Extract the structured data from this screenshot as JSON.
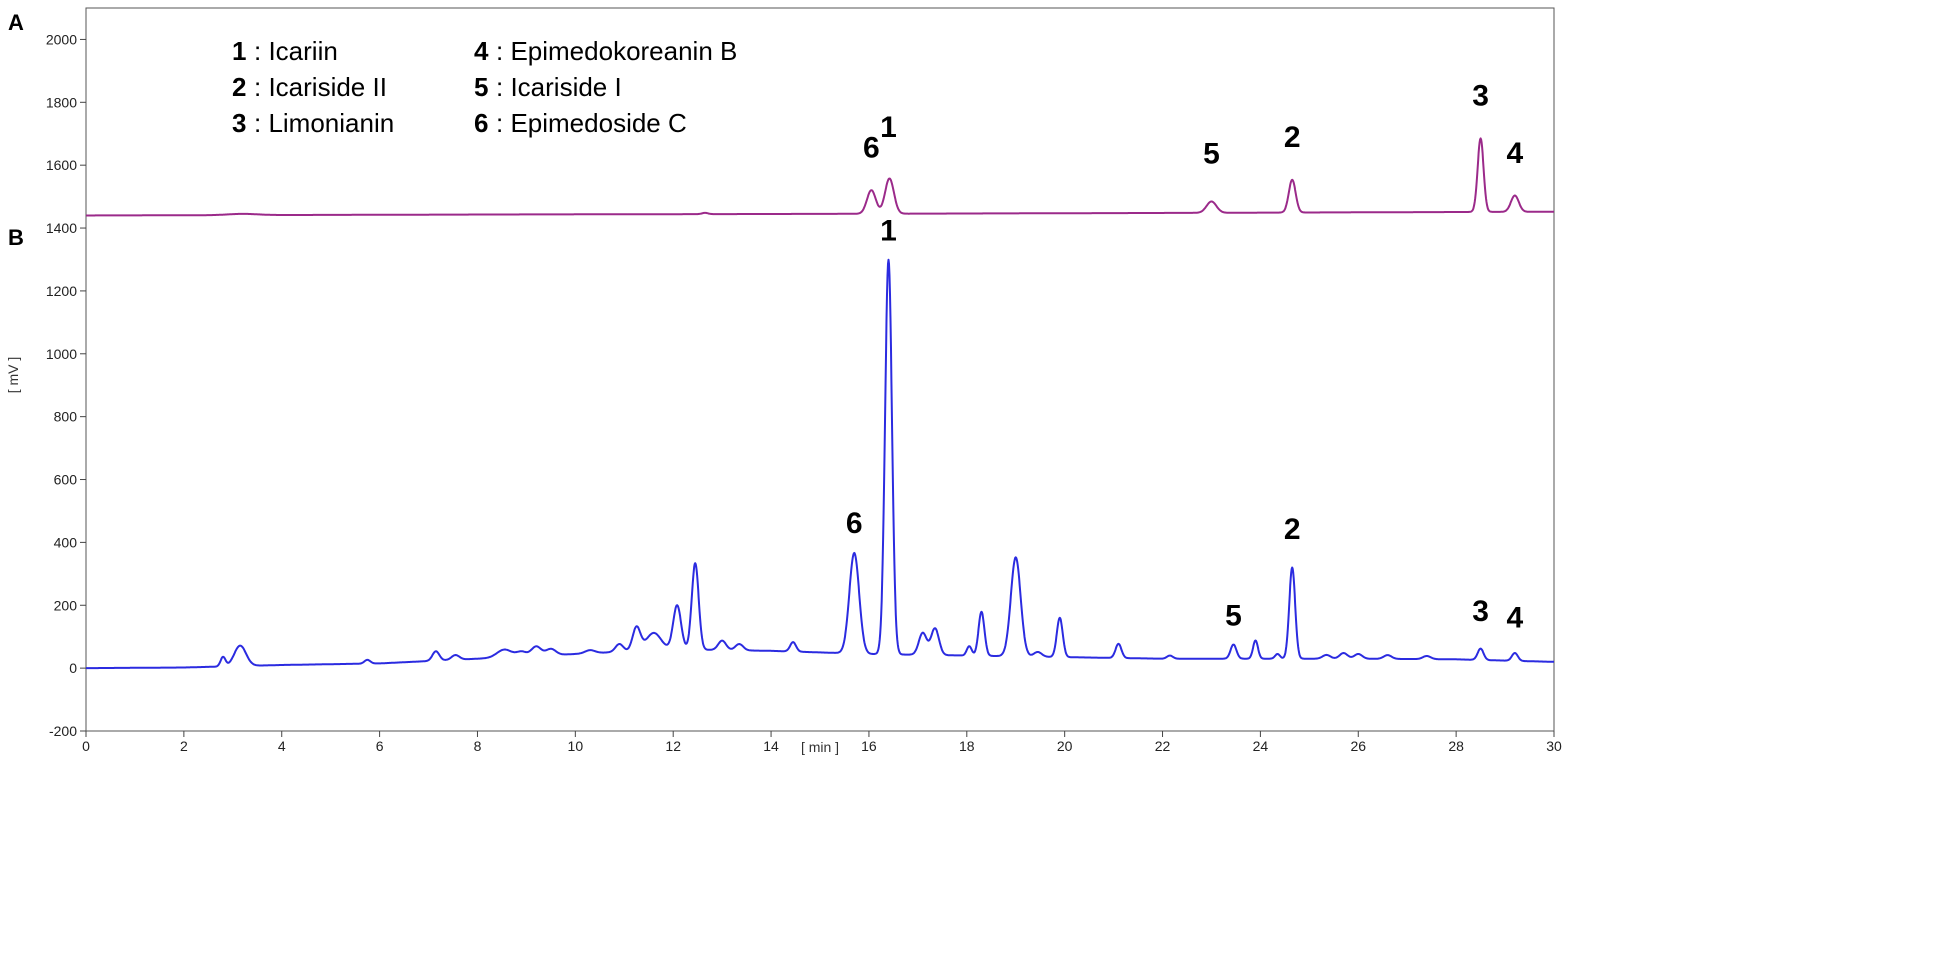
{
  "chart_data": {
    "type": "line",
    "panel_labels": [
      "A",
      "B"
    ],
    "xlabel": "[ min ]",
    "ylabel": "[ mV ]",
    "xlim": [
      0,
      30
    ],
    "ylim": [
      -200,
      2100
    ],
    "x_ticks": [
      0,
      2,
      4,
      6,
      8,
      10,
      12,
      14,
      16,
      18,
      20,
      22,
      24,
      26,
      28,
      30
    ],
    "y_ticks": [
      -200,
      0,
      200,
      400,
      600,
      800,
      1000,
      1200,
      1400,
      1600,
      1800,
      2000
    ],
    "grid": false,
    "legend": [
      {
        "num": "1",
        "name": ": Icariin"
      },
      {
        "num": "2",
        "name": ": Icariside II"
      },
      {
        "num": "3",
        "name": ": Limonianin"
      },
      {
        "num": "4",
        "name": ": Epimedokoreanin B"
      },
      {
        "num": "5",
        "name": ": Icariside I"
      },
      {
        "num": "6",
        "name": ": Epimedoside C"
      }
    ],
    "legend_position": "top-left",
    "series": [
      {
        "panel": "A",
        "color": "#9b2a8a",
        "baseline": [
          [
            0,
            1440
          ],
          [
            3,
            1441
          ],
          [
            8,
            1443
          ],
          [
            15,
            1445
          ],
          [
            22,
            1448
          ],
          [
            26,
            1450
          ],
          [
            30,
            1452
          ]
        ],
        "peaks": [
          {
            "x": 3.2,
            "h": 4,
            "w": 0.3
          },
          {
            "x": 12.65,
            "h": 4,
            "w": 0.06
          },
          {
            "x": 16.05,
            "h": 75,
            "w": 0.09
          },
          {
            "x": 16.42,
            "h": 112,
            "w": 0.09
          },
          {
            "x": 23.0,
            "h": 36,
            "w": 0.1
          },
          {
            "x": 24.65,
            "h": 104,
            "w": 0.07
          },
          {
            "x": 28.5,
            "h": 234,
            "w": 0.06
          },
          {
            "x": 29.2,
            "h": 52,
            "w": 0.08
          }
        ],
        "peak_labels": [
          {
            "label": "6",
            "x": 16.05,
            "y": 1625
          },
          {
            "label": "1",
            "x": 16.4,
            "y": 1690
          },
          {
            "label": "5",
            "x": 23.0,
            "y": 1605
          },
          {
            "label": "2",
            "x": 24.65,
            "y": 1658
          },
          {
            "label": "3",
            "x": 28.5,
            "y": 1790
          },
          {
            "label": "4",
            "x": 29.2,
            "y": 1607
          }
        ]
      },
      {
        "panel": "B",
        "color": "#2b2be0",
        "baseline": [
          [
            0,
            0
          ],
          [
            2,
            2
          ],
          [
            4,
            10
          ],
          [
            6,
            15
          ],
          [
            8,
            30
          ],
          [
            10,
            45
          ],
          [
            12,
            60
          ],
          [
            14,
            55
          ],
          [
            16,
            45
          ],
          [
            18,
            40
          ],
          [
            20,
            35
          ],
          [
            22,
            30
          ],
          [
            24,
            30
          ],
          [
            26,
            30
          ],
          [
            28,
            28
          ],
          [
            30,
            20
          ]
        ],
        "peaks": [
          {
            "x": 2.8,
            "h": 30,
            "w": 0.05
          },
          {
            "x": 3.15,
            "h": 65,
            "w": 0.12
          },
          {
            "x": 5.75,
            "h": 12,
            "w": 0.06
          },
          {
            "x": 7.15,
            "h": 30,
            "w": 0.07
          },
          {
            "x": 7.55,
            "h": 15,
            "w": 0.08
          },
          {
            "x": 8.55,
            "h": 25,
            "w": 0.15
          },
          {
            "x": 8.9,
            "h": 15,
            "w": 0.1
          },
          {
            "x": 9.2,
            "h": 30,
            "w": 0.1
          },
          {
            "x": 9.5,
            "h": 20,
            "w": 0.1
          },
          {
            "x": 10.3,
            "h": 10,
            "w": 0.1
          },
          {
            "x": 10.9,
            "h": 25,
            "w": 0.08
          },
          {
            "x": 11.25,
            "h": 75,
            "w": 0.08
          },
          {
            "x": 11.6,
            "h": 55,
            "w": 0.15
          },
          {
            "x": 12.08,
            "h": 140,
            "w": 0.08
          },
          {
            "x": 12.45,
            "h": 275,
            "w": 0.07
          },
          {
            "x": 13.0,
            "h": 30,
            "w": 0.08
          },
          {
            "x": 13.35,
            "h": 20,
            "w": 0.08
          },
          {
            "x": 14.45,
            "h": 30,
            "w": 0.06
          },
          {
            "x": 15.7,
            "h": 320,
            "w": 0.1
          },
          {
            "x": 16.4,
            "h": 1255,
            "w": 0.07
          },
          {
            "x": 17.1,
            "h": 70,
            "w": 0.08
          },
          {
            "x": 17.35,
            "h": 85,
            "w": 0.08
          },
          {
            "x": 18.05,
            "h": 30,
            "w": 0.05
          },
          {
            "x": 18.3,
            "h": 140,
            "w": 0.06
          },
          {
            "x": 19.0,
            "h": 315,
            "w": 0.1
          },
          {
            "x": 19.45,
            "h": 15,
            "w": 0.08
          },
          {
            "x": 19.9,
            "h": 125,
            "w": 0.06
          },
          {
            "x": 21.1,
            "h": 45,
            "w": 0.06
          },
          {
            "x": 22.15,
            "h": 10,
            "w": 0.06
          },
          {
            "x": 23.45,
            "h": 45,
            "w": 0.06
          },
          {
            "x": 23.9,
            "h": 58,
            "w": 0.05
          },
          {
            "x": 24.35,
            "h": 15,
            "w": 0.05
          },
          {
            "x": 24.65,
            "h": 290,
            "w": 0.06
          },
          {
            "x": 25.35,
            "h": 12,
            "w": 0.08
          },
          {
            "x": 25.7,
            "h": 18,
            "w": 0.08
          },
          {
            "x": 26.0,
            "h": 15,
            "w": 0.08
          },
          {
            "x": 26.6,
            "h": 12,
            "w": 0.08
          },
          {
            "x": 27.4,
            "h": 10,
            "w": 0.08
          },
          {
            "x": 28.5,
            "h": 36,
            "w": 0.06
          },
          {
            "x": 29.2,
            "h": 25,
            "w": 0.06
          }
        ],
        "peak_labels": [
          {
            "label": "1",
            "x": 16.4,
            "y": 1360
          },
          {
            "label": "6",
            "x": 15.7,
            "y": 430
          },
          {
            "label": "5",
            "x": 23.45,
            "y": 135
          },
          {
            "label": "2",
            "x": 24.65,
            "y": 410
          },
          {
            "label": "3",
            "x": 28.5,
            "y": 150
          },
          {
            "label": "4",
            "x": 29.2,
            "y": 130
          }
        ]
      }
    ]
  }
}
